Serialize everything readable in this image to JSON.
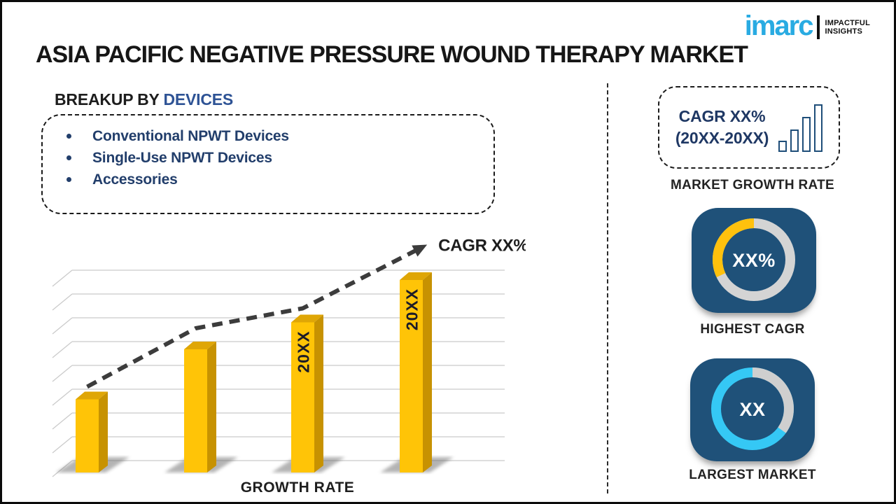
{
  "header": {
    "title": "ASIA PACIFIC NEGATIVE PRESSURE WOUND THERAPY MARKET",
    "logo": {
      "brand": "imarc",
      "brand_color": "#29ABE2",
      "tagline": [
        "IMPACTFUL",
        "INSIGHTS"
      ]
    }
  },
  "breakup": {
    "heading_prefix": "BREAKUP BY ",
    "heading_highlight": "DEVICES",
    "items": [
      "Conventional NPWT Devices",
      "Single-Use NPWT Devices",
      "Accessories"
    ]
  },
  "chart_data": {
    "type": "bar",
    "title": "",
    "categories": [
      "",
      "",
      "20XX",
      "20XX"
    ],
    "values": [
      38,
      64,
      78,
      100
    ],
    "values_note": "relative bar heights in % of tallest bar; no numeric axis labels shown",
    "ylim": [
      0,
      100
    ],
    "xlabel": "GROWTH RATE",
    "ylabel": "",
    "trend_label": "CAGR XX%",
    "trend_style": "dashed-arrow",
    "bar_color": "#FFC407",
    "bar_top_color": "#DFA606",
    "bar_side_color": "#C79201",
    "grid": true,
    "legend": "none"
  },
  "right_panel": {
    "cagr_box": {
      "line1": "CAGR XX%",
      "line2": "(20XX-20XX)"
    },
    "market_growth_rate_label": "MARKET GROWTH RATE",
    "highest_cagr": {
      "value": "XX%",
      "label": "HIGHEST CAGR",
      "tile_color": "#1F5179",
      "ring": {
        "base": "#D4D4D4",
        "accent": "#FFC10D",
        "accent_start": 0.68,
        "accent_end": 1.0
      }
    },
    "largest_market": {
      "value": "XX",
      "label": "LARGEST MARKET",
      "tile_color": "#1F5179",
      "ring": {
        "base": "#35C8F5",
        "accent": "#CFCFCF",
        "accent_start": 0.0,
        "accent_end": 0.35
      }
    }
  }
}
